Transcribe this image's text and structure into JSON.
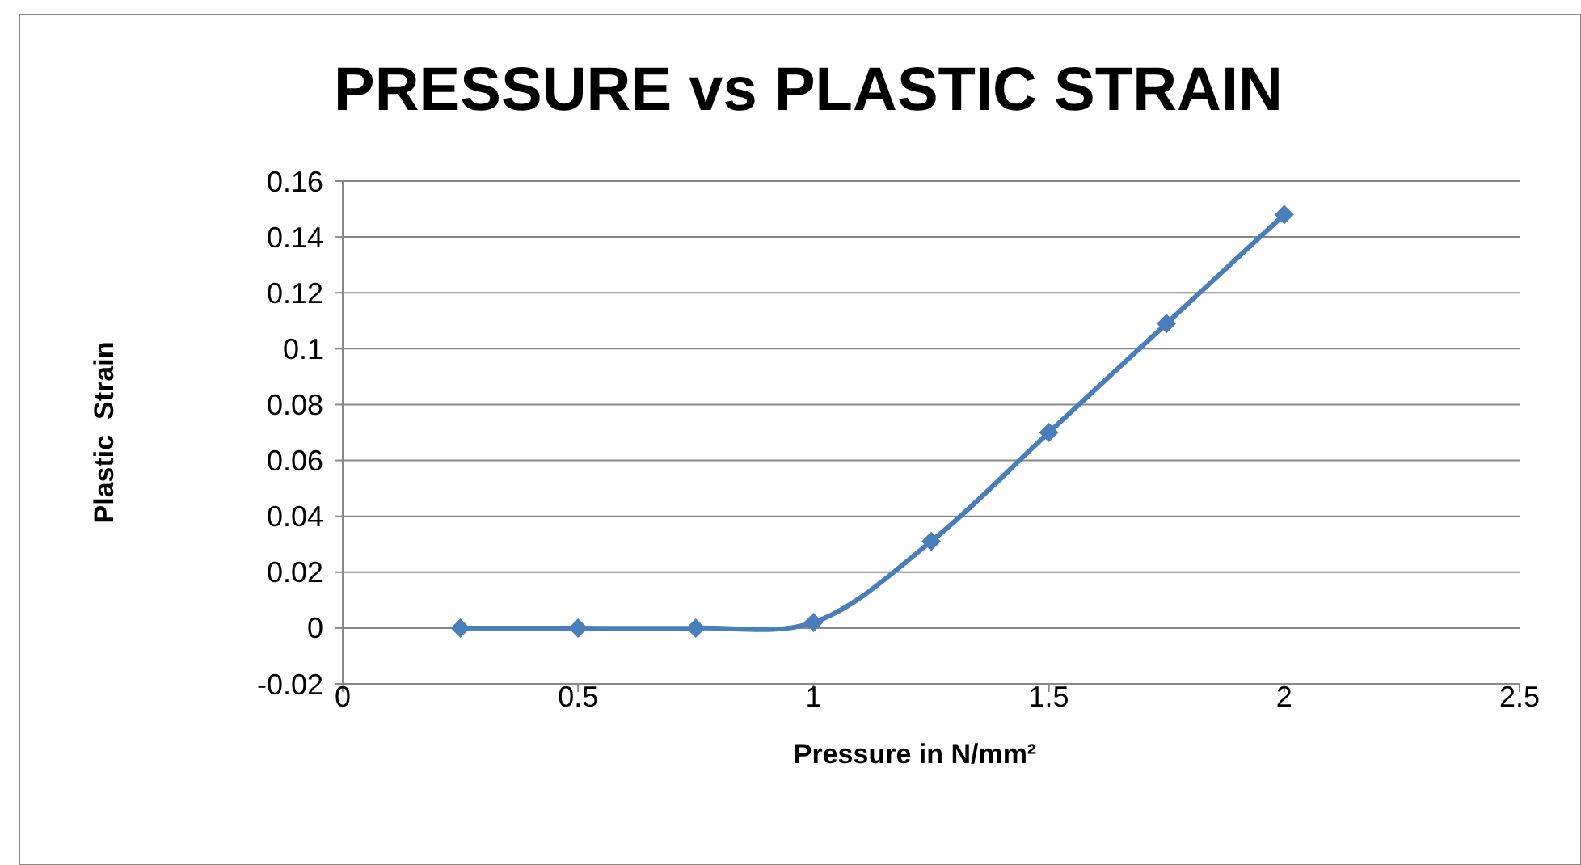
{
  "chart_data": {
    "type": "line",
    "title": "PRESSURE vs PLASTIC STRAIN",
    "xlabel": "Pressure in N/mm²",
    "ylabel": "Plastic  Strain",
    "x": [
      0.25,
      0.5,
      0.75,
      1,
      1.25,
      1.5,
      1.75,
      2
    ],
    "series": [
      {
        "color": "#4a7ebb",
        "values": [
          0,
          0,
          0,
          0.002,
          0.031,
          0.07,
          0.109,
          0.148
        ]
      }
    ],
    "xlim": [
      0,
      2.5
    ],
    "xticks": [
      0,
      0.5,
      1,
      1.5,
      2,
      2.5
    ],
    "ylim": [
      -0.02,
      0.16
    ],
    "yticks": [
      -0.02,
      0,
      0.02,
      0.04,
      0.06,
      0.08,
      0.1,
      0.12,
      0.14,
      0.16
    ],
    "grid": "y",
    "marker": "diamond",
    "line_style": "solid"
  }
}
